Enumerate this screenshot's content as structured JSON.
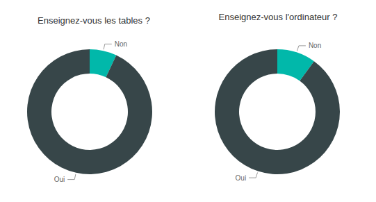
{
  "chart_data": [
    {
      "type": "donut",
      "title": "Enseignez-vous les tables ?",
      "categories": [
        "Non",
        "Oui"
      ],
      "values": [
        7,
        93
      ],
      "colors": [
        "#01b8aa",
        "#374649"
      ]
    },
    {
      "type": "donut",
      "title": "Enseignez-vous l'ordinateur ?",
      "categories": [
        "Non",
        "Oui"
      ],
      "values": [
        10,
        90
      ],
      "colors": [
        "#01b8aa",
        "#374649"
      ]
    }
  ]
}
